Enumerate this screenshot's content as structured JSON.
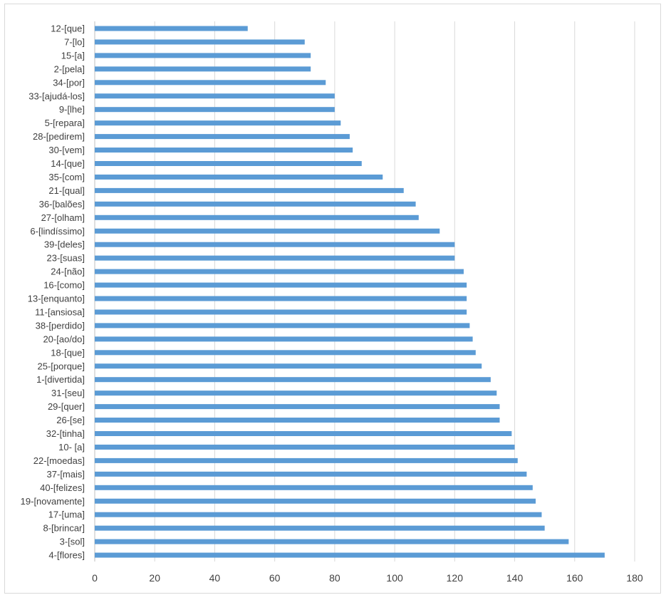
{
  "chart_data": {
    "type": "bar",
    "orientation": "horizontal",
    "title": "",
    "xlabel": "",
    "ylabel": "",
    "xlim": [
      0,
      180
    ],
    "x_ticks": [
      0,
      20,
      40,
      60,
      80,
      100,
      120,
      140,
      160,
      180
    ],
    "grid": "vertical",
    "legend": "none",
    "bar_color": "#5b9bd5",
    "categories": [
      "12-[que]",
      "7-[lo]",
      "15-[a]",
      "2-[pela]",
      "34-[por]",
      "33-[ajudá-los]",
      "9-[lhe]",
      "5-[repara]",
      "28-[pedirem]",
      "30-[vem]",
      "14-[que]",
      "35-[com]",
      "21-[qual]",
      "36-[balões]",
      "27-[olham]",
      "6-[lindíssimo]",
      "39-[deles]",
      "23-[suas]",
      "24-[não]",
      "16-[como]",
      "13-[enquanto]",
      "11-[ansiosa]",
      "38-[perdido]",
      "20-[ao/do]",
      "18-[que]",
      "25-[porque]",
      "1-[divertida]",
      "31-[seu]",
      "29-[quer]",
      "26-[se]",
      "32-[tinha]",
      "10- [a]",
      "22-[moedas]",
      "37-[mais]",
      "40-[felizes]",
      "19-[novamente]",
      "17-[uma]",
      "8-[brincar]",
      "3-[sol]",
      "4-[flores]"
    ],
    "values": [
      51,
      70,
      72,
      72,
      77,
      80,
      80,
      82,
      85,
      86,
      89,
      96,
      103,
      107,
      108,
      115,
      120,
      120,
      123,
      124,
      124,
      124,
      125,
      126,
      127,
      129,
      132,
      134,
      135,
      135,
      139,
      140,
      141,
      144,
      146,
      147,
      149,
      150,
      158,
      170
    ]
  }
}
